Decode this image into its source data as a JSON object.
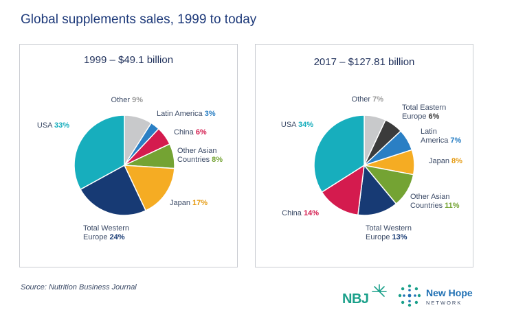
{
  "title": "Global supplements sales, 1999 to today",
  "source": "Source: Nutrition Business Journal",
  "logos": {
    "nbj": "NBJ",
    "newhope_name": "New Hope",
    "newhope_sub": "NETWORK"
  },
  "colors": {
    "other": "#c8c9cb",
    "latin_america": "#2a7fc4",
    "china": "#d41b4e",
    "other_asian": "#74a333",
    "japan": "#f5ac23",
    "western_europe": "#173a74",
    "usa": "#17aebd",
    "eastern_europe": "#3b3b3b"
  },
  "chart_data": [
    {
      "type": "pie",
      "title": "1999 – $49.1 billion",
      "slices": [
        {
          "label": "Other",
          "value": 9,
          "pct": "9%",
          "color": "#c8c9cb"
        },
        {
          "label": "Latin America",
          "value": 3,
          "pct": "3%",
          "color": "#2a7fc4"
        },
        {
          "label": "China",
          "value": 6,
          "pct": "6%",
          "color": "#d41b4e"
        },
        {
          "label": "Other Asian Countries",
          "value": 8,
          "pct": "8%",
          "color": "#74a333"
        },
        {
          "label": "Japan",
          "value": 17,
          "pct": "17%",
          "color": "#f5ac23"
        },
        {
          "label": "Total Western Europe",
          "value": 24,
          "pct": "24%",
          "color": "#173a74"
        },
        {
          "label": "USA",
          "value": 33,
          "pct": "33%",
          "color": "#17aebd"
        }
      ]
    },
    {
      "type": "pie",
      "title": "2017 – $127.81 billion",
      "slices": [
        {
          "label": "Other",
          "value": 7,
          "pct": "7%",
          "color": "#c8c9cb"
        },
        {
          "label": "Total Eastern Europe",
          "value": 6,
          "pct": "6%",
          "color": "#3b3b3b"
        },
        {
          "label": "Latin America",
          "value": 7,
          "pct": "7%",
          "color": "#2a7fc4"
        },
        {
          "label": "Japan",
          "value": 8,
          "pct": "8%",
          "color": "#f5ac23"
        },
        {
          "label": "Other Asian Countries",
          "value": 11,
          "pct": "11%",
          "color": "#74a333"
        },
        {
          "label": "Total Western Europe",
          "value": 13,
          "pct": "13%",
          "color": "#173a74"
        },
        {
          "label": "China",
          "value": 14,
          "pct": "14%",
          "color": "#d41b4e"
        },
        {
          "label": "USA",
          "value": 34,
          "pct": "34%",
          "color": "#17aebd"
        }
      ]
    }
  ],
  "labels": {
    "c1": {
      "other": "Other",
      "latin": "Latin America",
      "china": "China",
      "oac_1": "Other Asian",
      "oac_2": "Countries",
      "japan": "Japan",
      "twe_1": "Total Western",
      "twe_2": "Europe",
      "usa": "USA"
    },
    "c2": {
      "other": "Other",
      "tee_1": "Total Eastern",
      "tee_2": "Europe",
      "latin_1": "Latin",
      "latin_2": "America",
      "japan": "Japan",
      "oac_1": "Other Asian",
      "oac_2": "Countries",
      "twe_1": "Total Western",
      "twe_2": "Europe",
      "china": "China",
      "usa": "USA"
    }
  }
}
